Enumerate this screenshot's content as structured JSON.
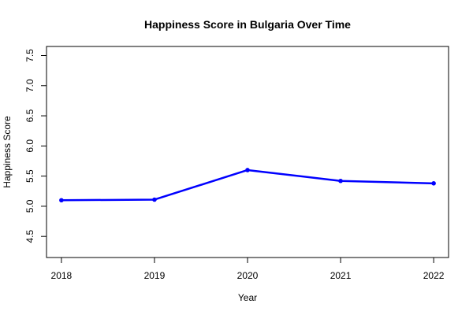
{
  "chart_data": {
    "type": "line",
    "title": "Happiness Score in Bulgaria Over Time",
    "xlabel": "Year",
    "ylabel": "Happiness Score",
    "x": [
      2018,
      2019,
      2020,
      2021,
      2022
    ],
    "series": [
      {
        "values": [
          5.1,
          5.11,
          5.6,
          5.42,
          5.38
        ],
        "color": "#0000ff"
      }
    ],
    "xlim": [
      2017.84,
      2022.16
    ],
    "ylim": [
      4.15,
      7.65
    ],
    "xticks": [
      "2018",
      "2019",
      "2020",
      "2021",
      "2022"
    ],
    "yticks": [
      "4.5",
      "5.0",
      "5.5",
      "6.0",
      "6.5",
      "7.0",
      "7.5"
    ],
    "grid": false,
    "legend": "none"
  }
}
